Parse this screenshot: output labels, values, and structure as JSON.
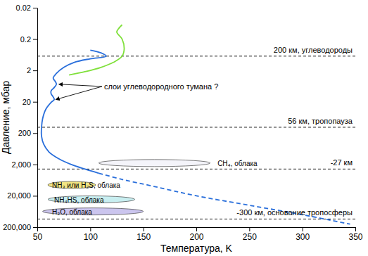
{
  "chart_data": {
    "type": "line",
    "x_label": "Температура, K",
    "y_label": "Давление, мбар",
    "log": "y",
    "grid": false,
    "xlim": [
      50,
      350
    ],
    "xticks": [
      50,
      100,
      150,
      200,
      250,
      300,
      350
    ],
    "ylim": [
      200000,
      0.02
    ],
    "yticks": [
      0.02,
      0.2,
      2,
      20,
      200,
      {
        "value": 2000,
        "label": "2,000"
      },
      {
        "value": 20000,
        "label": "20,000"
      },
      {
        "value": 200000,
        "label": "200,000"
      }
    ],
    "series": [
      {
        "color": "#2a6fdb",
        "line_style": "solid",
        "x": [
          100,
          110,
          115,
          100,
          85,
          75,
          68,
          65,
          67,
          68,
          66,
          63,
          63,
          65,
          66,
          63,
          58,
          55,
          54,
          54,
          56,
          61,
          70,
          82,
          95,
          108
        ],
        "values": [
          0.45,
          0.55,
          0.7,
          0.85,
          1.1,
          1.6,
          2.5,
          3.5,
          4.5,
          5.5,
          7,
          9,
          11,
          14,
          17,
          21,
          35,
          70,
          130,
          250,
          450,
          800,
          1300,
          2000,
          2800,
          3800
        ]
      },
      {
        "color": "#2a6fdb",
        "line_style": "dashed",
        "x": [
          108,
          130,
          160,
          200,
          250,
          300,
          345
        ],
        "values": [
          3800,
          6000,
          10000,
          20000,
          40000,
          80000,
          160000
        ]
      },
      {
        "color": "#7fe03a",
        "line_style": "solid",
        "x": [
          80,
          95,
          110,
          122,
          130,
          132,
          130,
          125,
          127,
          130
        ],
        "values": [
          2.8,
          2.2,
          1.6,
          1.1,
          0.7,
          0.4,
          0.2,
          0.12,
          0.09,
          0.07
        ]
      }
    ],
    "hlines": [
      {
        "value": 0.7,
        "label": "200 км, углеводороды"
      },
      {
        "value": 130,
        "label": "56 км, тропопауза"
      },
      {
        "value": 2800,
        "label": "-27 км"
      },
      {
        "value": 110000,
        "label": "-300 км, основание тропосферы"
      }
    ],
    "clouds": [
      {
        "label": "CH₄, облака",
        "x": [
          108,
          213
        ],
        "y": 1800,
        "label_x": 220,
        "color": "#f4f4fa"
      },
      {
        "label": "NH₃ или H₂S, облака",
        "x": [
          60,
          105
        ],
        "y": 9000,
        "label_x": 64,
        "color": "#f3e583"
      },
      {
        "label": "NH₄HS, облака",
        "x": [
          60,
          142
        ],
        "y": 26000,
        "label_x": 66,
        "color": "#c8eef0"
      },
      {
        "label": "H₂O, облака",
        "x": [
          55,
          150
        ],
        "y": 63000,
        "label_x": 64,
        "color": "#cbc5ee"
      }
    ],
    "annotations": [
      {
        "text": "слои углеводородного тумана ?",
        "x": 113,
        "y": 6.5,
        "points": [
          [
            69,
            5.5
          ],
          [
            66,
            17
          ]
        ]
      }
    ]
  }
}
